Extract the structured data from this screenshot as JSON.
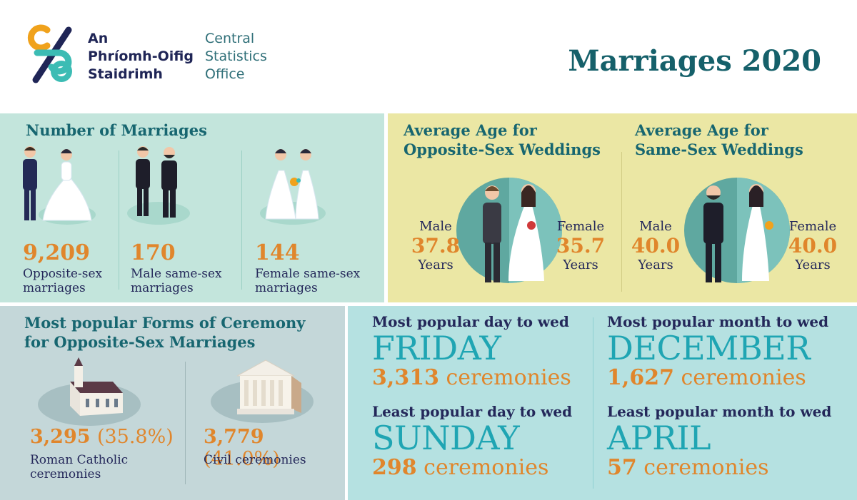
{
  "header": {
    "logo_irish_lines": [
      "An",
      "Phríomh-Oifig",
      "Staidrimh"
    ],
    "logo_english_lines": [
      "Central",
      "Statistics",
      "Office"
    ],
    "title": "Marriages 2020"
  },
  "number_of_marriages": {
    "heading": "Number of Marriages",
    "items": [
      {
        "value": "9,209",
        "label_lines": [
          "Opposite-sex",
          "marriages"
        ]
      },
      {
        "value": "170",
        "label_lines": [
          "Male same-sex",
          "marriages"
        ]
      },
      {
        "value": "144",
        "label_lines": [
          "Female same-sex",
          "marriages"
        ]
      }
    ]
  },
  "average_age": {
    "opposite": {
      "heading_lines": [
        "Average Age for",
        "Opposite-Sex Weddings"
      ],
      "male": {
        "label": "Male",
        "value": "37.8",
        "unit": "Years"
      },
      "female": {
        "label": "Female",
        "value": "35.7",
        "unit": "Years"
      }
    },
    "same": {
      "heading_lines": [
        "Average Age for",
        "Same-Sex Weddings"
      ],
      "male": {
        "label": "Male",
        "value": "40.0",
        "unit": "Years"
      },
      "female": {
        "label": "Female",
        "value": "40.0",
        "unit": "Years"
      }
    }
  },
  "ceremony": {
    "heading_lines": [
      "Most popular Forms of Ceremony",
      "for Opposite-Sex Marriages"
    ],
    "items": [
      {
        "value": "3,295",
        "pct": "(35.8%)",
        "label_lines": [
          "Roman Catholic",
          "ceremonies"
        ]
      },
      {
        "value": "3,779",
        "pct": "(41.0%)",
        "label_lines": [
          "Civil ceremonies"
        ]
      }
    ]
  },
  "popular": {
    "day_most": {
      "question": "Most popular day to wed",
      "answer": "FRIDAY",
      "count": "3,313",
      "unit": "ceremonies"
    },
    "day_least": {
      "question": "Least popular day to wed",
      "answer": "SUNDAY",
      "count": "298",
      "unit": "ceremonies"
    },
    "month_most": {
      "question": "Most popular month to wed",
      "answer": "DECEMBER",
      "count": "1,627",
      "unit": "ceremonies"
    },
    "month_least": {
      "question": "Least popular month to wed",
      "answer": "APRIL",
      "count": "57",
      "unit": "ceremonies"
    }
  },
  "colors": {
    "teal_dark": "#15606a",
    "teal_bright": "#1fa5b3",
    "orange": "#e0862c",
    "navy": "#24285a",
    "panel_mint": "#c3e5dc",
    "panel_yellow": "#ebe7a4",
    "panel_grey": "#c4d7d9",
    "panel_aqua": "#b5e1e1"
  },
  "icons": [
    "cso-logo-icon",
    "bride-groom-icon",
    "grooms-icon",
    "brides-icon",
    "couple-circle-icon",
    "church-icon",
    "civic-hall-icon"
  ]
}
